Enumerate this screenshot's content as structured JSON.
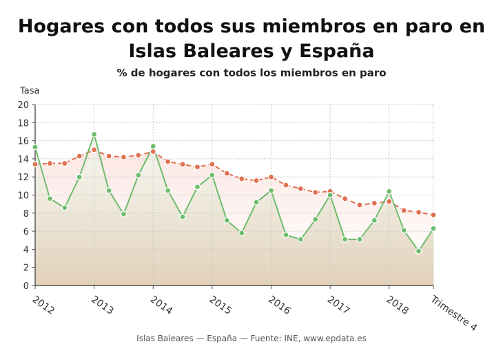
{
  "title_line1": "Hogares con todos sus miembros en paro en",
  "title_line2": "Islas Baleares y España",
  "subtitle": "% de hogares con todos los miembros en paro",
  "footer": "Islas Baleares — España — Fuente: INE, www.epdata.es",
  "chart_data": {
    "type": "line",
    "ylabel": "Tasa",
    "ylim": [
      0,
      20
    ],
    "yticks": [
      0,
      2,
      4,
      6,
      8,
      10,
      12,
      14,
      16,
      18,
      20
    ],
    "xtick_labels": [
      "2012",
      "2013",
      "2014",
      "2015",
      "2016",
      "2017",
      "2018",
      "Trimestre 4"
    ],
    "xtick_positions": [
      0,
      4,
      8,
      12,
      16,
      20,
      24,
      27
    ],
    "grid": true,
    "series": [
      {
        "name": "España",
        "color": "#e0704f",
        "values": [
          13.4,
          13.5,
          13.5,
          14.3,
          15.0,
          14.3,
          14.2,
          14.4,
          14.8,
          13.7,
          13.4,
          13.1,
          13.4,
          12.4,
          11.8,
          11.6,
          12.0,
          11.1,
          10.7,
          10.3,
          10.4,
          9.6,
          8.9,
          9.1,
          9.3,
          8.3,
          8.1,
          7.8
        ]
      },
      {
        "name": "Islas Baleares",
        "color": "#6dbd6d",
        "values": [
          15.3,
          9.6,
          8.6,
          12.0,
          16.7,
          10.5,
          7.9,
          12.2,
          15.4,
          10.5,
          7.6,
          10.9,
          12.2,
          7.2,
          5.8,
          9.2,
          10.5,
          5.6,
          5.1,
          7.3,
          10.0,
          5.1,
          5.1,
          7.2,
          10.4,
          6.1,
          3.8,
          6.3
        ]
      }
    ]
  }
}
